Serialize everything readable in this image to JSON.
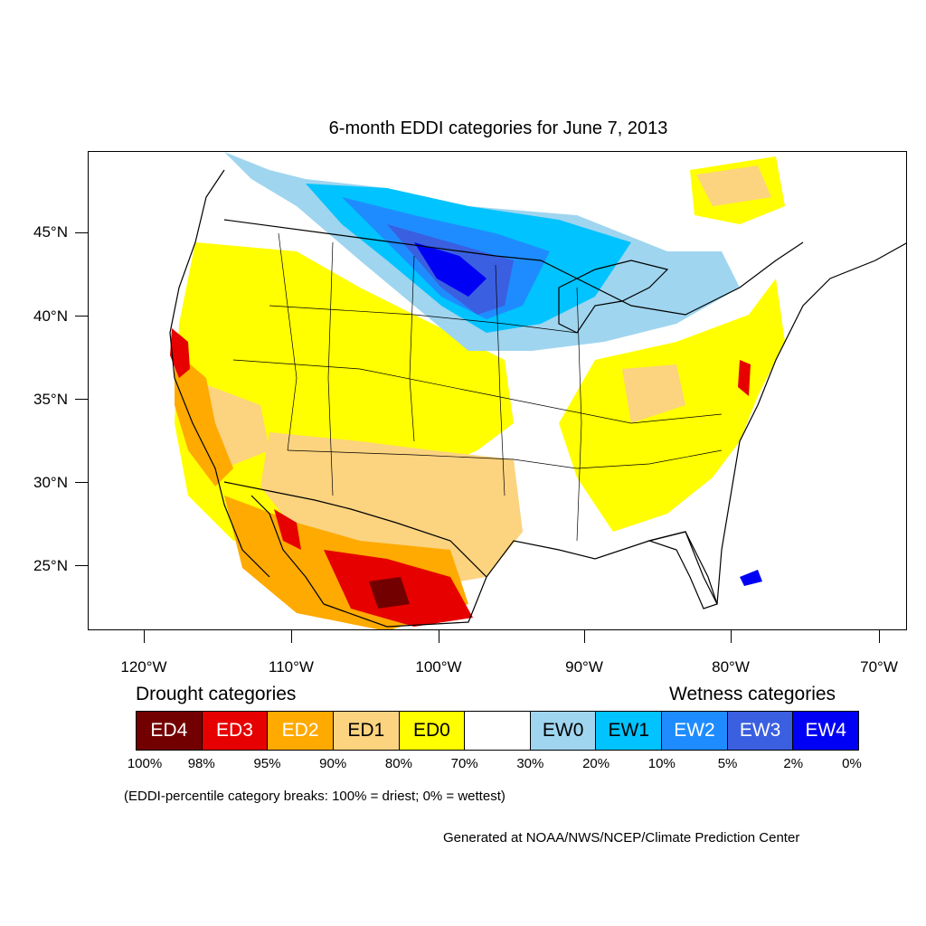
{
  "title": "6-month EDDI categories for June 7, 2013",
  "lat_labels": [
    "45°N",
    "40°N",
    "35°N",
    "30°N",
    "25°N"
  ],
  "lon_labels": [
    "120°W",
    "110°W",
    "100°W",
    "90°W",
    "80°W",
    "70°W"
  ],
  "legend": {
    "drought_heading": "Drought categories",
    "wetness_heading": "Wetness categories",
    "categories": [
      {
        "label": "ED4",
        "color": "#730000",
        "text_color": "#ffffff"
      },
      {
        "label": "ED3",
        "color": "#e60000",
        "text_color": "#ffffff"
      },
      {
        "label": "ED2",
        "color": "#ffaa00",
        "text_color": "#ffffff"
      },
      {
        "label": "ED1",
        "color": "#fcd37f",
        "text_color": "#000000"
      },
      {
        "label": "ED0",
        "color": "#ffff00",
        "text_color": "#000000"
      },
      {
        "label": "",
        "color": "#ffffff",
        "text_color": "#000000"
      },
      {
        "label": "EW0",
        "color": "#9fd5ef",
        "text_color": "#000000"
      },
      {
        "label": "EW1",
        "color": "#00c3ff",
        "text_color": "#000000"
      },
      {
        "label": "EW2",
        "color": "#1e8cff",
        "text_color": "#ffffff"
      },
      {
        "label": "EW3",
        "color": "#3a5fe0",
        "text_color": "#ffffff"
      },
      {
        "label": "EW4",
        "color": "#0000f5",
        "text_color": "#ffffff"
      }
    ],
    "percent_breaks": [
      "100%",
      "98%",
      "95%",
      "90%",
      "80%",
      "70%",
      "30%",
      "20%",
      "10%",
      "5%",
      "2%",
      "0%"
    ]
  },
  "note": "(EDDI-percentile category breaks: 100% = driest; 0% = wettest)",
  "credit": "Generated at NOAA/NWS/NCEP/Climate Prediction Center"
}
